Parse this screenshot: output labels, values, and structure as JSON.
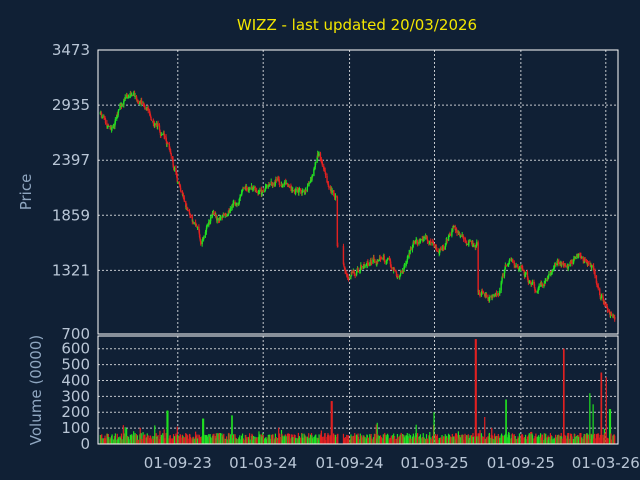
{
  "chart_data": {
    "type": "candlestick",
    "title": "WIZZ - last updated 20/03/2026",
    "colors": {
      "background": "#102035",
      "up": "#21e021",
      "down": "#e02121",
      "text": "#b9c6d6",
      "title": "#f2e600",
      "axis_label": "#8fa6c0"
    },
    "price_panel": {
      "ylabel": "Price",
      "ylim": [
        700,
        3473
      ],
      "yticks": [
        700,
        1321,
        1859,
        2397,
        2935,
        3473
      ],
      "grid": true,
      "trend": [
        [
          "2023-03-20",
          2850
        ],
        [
          "2023-04-10",
          2700
        ],
        [
          "2023-05-01",
          2900
        ],
        [
          "2023-05-25",
          3050
        ],
        [
          "2023-06-20",
          2950
        ],
        [
          "2023-07-10",
          2800
        ],
        [
          "2023-07-31",
          2650
        ],
        [
          "2023-08-20",
          2350
        ],
        [
          "2023-09-10",
          2050
        ],
        [
          "2023-09-30",
          1850
        ],
        [
          "2023-10-20",
          1600
        ],
        [
          "2023-11-10",
          1800
        ],
        [
          "2023-12-01",
          1850
        ],
        [
          "2024-01-01",
          2000
        ],
        [
          "2024-02-01",
          2150
        ],
        [
          "2024-03-01",
          2050
        ],
        [
          "2024-04-01",
          2200
        ],
        [
          "2024-05-01",
          2150
        ],
        [
          "2024-06-01",
          2100
        ],
        [
          "2024-06-25",
          2450
        ],
        [
          "2024-07-15",
          2150
        ],
        [
          "2024-08-05",
          2000
        ],
        [
          "2024-08-06",
          1550
        ],
        [
          "2024-08-25",
          1300
        ],
        [
          "2024-09-20",
          1350
        ],
        [
          "2024-10-20",
          1450
        ],
        [
          "2024-11-20",
          1400
        ],
        [
          "2024-12-15",
          1250
        ],
        [
          "2025-01-15",
          1600
        ],
        [
          "2025-02-15",
          1650
        ],
        [
          "2025-03-15",
          1500
        ],
        [
          "2025-04-10",
          1750
        ],
        [
          "2025-05-05",
          1650
        ],
        [
          "2025-05-30",
          1600
        ],
        [
          "2025-06-01",
          1100
        ],
        [
          "2025-06-30",
          1050
        ],
        [
          "2025-07-15",
          1100
        ],
        [
          "2025-08-01",
          1400
        ],
        [
          "2025-09-01",
          1350
        ],
        [
          "2025-10-01",
          1150
        ],
        [
          "2025-11-01",
          1300
        ],
        [
          "2025-12-01",
          1350
        ],
        [
          "2026-01-01",
          1450
        ],
        [
          "2026-02-01",
          1350
        ],
        [
          "2026-02-15",
          1050
        ],
        [
          "2026-03-20",
          850
        ]
      ]
    },
    "volume_panel": {
      "ylabel": "Volume (0000)",
      "ylim": [
        0,
        680
      ],
      "yticks": [
        0,
        100,
        200,
        300,
        400,
        500,
        600
      ],
      "grid": true,
      "spikes": [
        [
          "2023-08-10",
          210,
          "up"
        ],
        [
          "2023-10-25",
          160,
          "up"
        ],
        [
          "2023-12-25",
          180,
          "up"
        ],
        [
          "2024-07-25",
          270,
          "down"
        ],
        [
          "2025-03-01",
          200,
          "up"
        ],
        [
          "2025-05-28",
          660,
          "down"
        ],
        [
          "2025-06-15",
          170,
          "down"
        ],
        [
          "2025-08-01",
          280,
          "up"
        ],
        [
          "2025-12-01",
          600,
          "down"
        ],
        [
          "2026-01-25",
          320,
          "up"
        ],
        [
          "2026-02-01",
          250,
          "up"
        ],
        [
          "2026-02-20",
          450,
          "down"
        ],
        [
          "2026-03-01",
          420,
          "down"
        ],
        [
          "2026-03-10",
          220,
          "up"
        ]
      ]
    },
    "x_axis": {
      "range": [
        "2023-03-15",
        "2026-03-27"
      ],
      "ticks": [
        {
          "date": "2023-09-01",
          "label": "01-09-23"
        },
        {
          "date": "2024-03-01",
          "label": "01-03-24"
        },
        {
          "date": "2024-09-01",
          "label": "01-09-24"
        },
        {
          "date": "2025-03-01",
          "label": "01-03-25"
        },
        {
          "date": "2025-09-01",
          "label": "01-09-25"
        },
        {
          "date": "2026-03-01",
          "label": "01-03-26"
        }
      ]
    }
  }
}
